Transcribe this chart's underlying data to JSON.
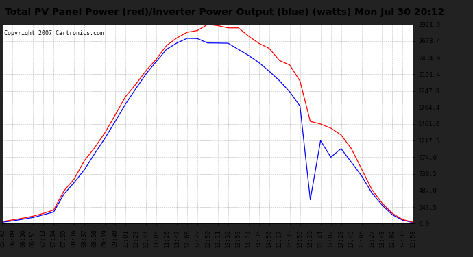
{
  "title": "Total PV Panel Power (red)/Inverter Power Output (blue) (watts) Mon Jul 30 20:12",
  "copyright": "Copyright 2007 Cartronics.com",
  "outer_bg": "#222222",
  "title_bg": "#dddddd",
  "plot_bg": "#ffffff",
  "grid_color": "#aaaaaa",
  "red_color": "#ff0000",
  "blue_color": "#0000ff",
  "yticks": [
    0.0,
    243.5,
    487.0,
    730.5,
    974.0,
    1217.5,
    1461.0,
    1704.4,
    1947.9,
    2191.4,
    2434.9,
    2678.4,
    2921.9
  ],
  "ymax": 2921.9,
  "xtick_labels": [
    "05:42",
    "06:09",
    "06:30",
    "06:51",
    "07:13",
    "07:34",
    "07:55",
    "08:16",
    "08:37",
    "08:58",
    "09:19",
    "09:40",
    "10:01",
    "10:23",
    "10:44",
    "11:05",
    "11:26",
    "11:47",
    "12:08",
    "12:29",
    "12:50",
    "13:11",
    "13:32",
    "13:53",
    "14:14",
    "14:35",
    "14:56",
    "15:17",
    "15:38",
    "15:59",
    "16:20",
    "16:41",
    "17:02",
    "17:23",
    "17:45",
    "18:06",
    "18:27",
    "18:48",
    "19:09",
    "19:30",
    "19:58"
  ],
  "title_fontsize": 10,
  "tick_fontsize": 6.5,
  "copyright_fontsize": 6
}
